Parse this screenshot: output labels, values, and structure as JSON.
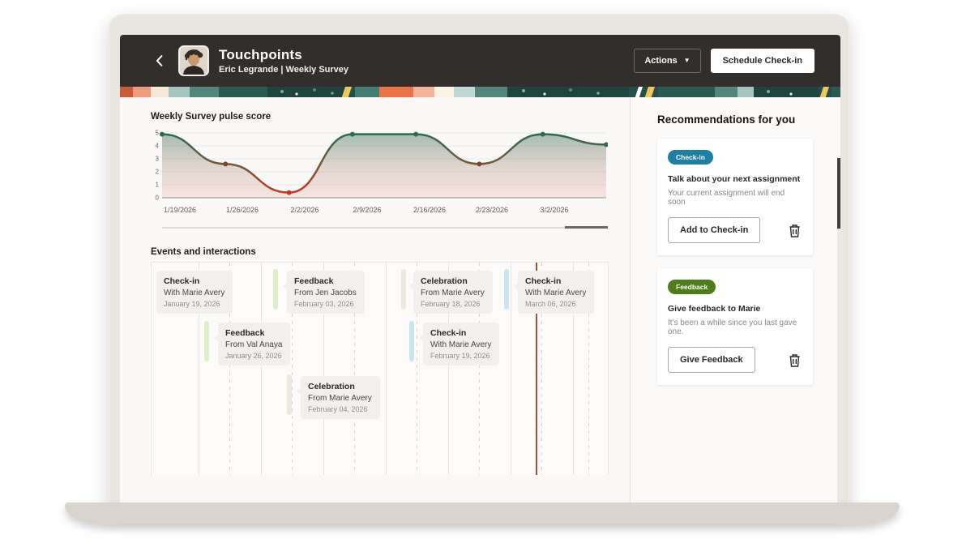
{
  "header": {
    "title": "Touchpoints",
    "subtitle": "Eric Legrande | Weekly Survey",
    "actions_label": "Actions",
    "schedule_label": "Schedule Check-in"
  },
  "chart_section": {
    "title": "Weekly Survey pulse score"
  },
  "chart_data": {
    "type": "line",
    "title": "Weekly Survey pulse score",
    "x_tick_labels": [
      "1/19/2026",
      "1/26/2026",
      "2/2/2026",
      "2/9/2026",
      "2/16/2026",
      "2/23/2026",
      "3/2/2026"
    ],
    "values": [
      4.9,
      2.6,
      0.4,
      4.9,
      4.9,
      2.6,
      4.9,
      4.1
    ],
    "ylim": [
      0,
      5
    ],
    "y_ticks": [
      0,
      1,
      2,
      3,
      4,
      5
    ],
    "grid": true,
    "style": "smooth line with green-to-red value gradient and gradient area fill, dot markers at each survey point",
    "colors": {
      "high": "#2F6B52",
      "mid": "#7D4637",
      "low": "#C13A22"
    }
  },
  "timeline": {
    "title": "Events and interactions",
    "events": [
      {
        "type": "check-in",
        "title": "Check-in",
        "person": "With Marie Avery",
        "date": "January 19, 2026"
      },
      {
        "type": "feedback",
        "title": "Feedback",
        "person": "From Jen Jacobs",
        "date": "February 03, 2026"
      },
      {
        "type": "celebration",
        "title": "Celebration",
        "person": "From Marie Avery",
        "date": "February 18, 2026"
      },
      {
        "type": "check-in",
        "title": "Check-in",
        "person": "With Marie Avery",
        "date": "March 06, 2026"
      },
      {
        "type": "feedback",
        "title": "Feedback",
        "person": "From Val Anaya",
        "date": "January 26, 2026"
      },
      {
        "type": "check-in",
        "title": "Check-in",
        "person": "With Marie Avery",
        "date": "February 19, 2026"
      },
      {
        "type": "celebration",
        "title": "Celebration",
        "person": "From Marie Avery",
        "date": "February 04, 2026"
      }
    ],
    "type_colors": {
      "feedback": {
        "fill": "#62A41F",
        "ring": "#DDEFC8"
      },
      "check-in": {
        "fill": "#1F7FA0",
        "ring": "#C9E6F0"
      },
      "celebration": {
        "fill": "#FCFAF6",
        "ring": "#ECE8E0"
      }
    }
  },
  "recommendations": {
    "title": "Recommendations for you",
    "cards": [
      {
        "badge": "Check-in",
        "badge_color": "#1F7FA0",
        "title": "Talk about your next assignment",
        "subtitle": "Your current assignment will end soon",
        "button_label": "Add to Check-in"
      },
      {
        "badge": "Feedback",
        "badge_color": "#4E7D1A",
        "title": "Give feedback to Marie",
        "subtitle": "It's been a while since you last gave one.",
        "button_label": "Give Feedback"
      }
    ]
  },
  "colors": {
    "header_bg": "#322E2B",
    "accent_red": "#C74634",
    "today_line": "#A84B3F"
  }
}
